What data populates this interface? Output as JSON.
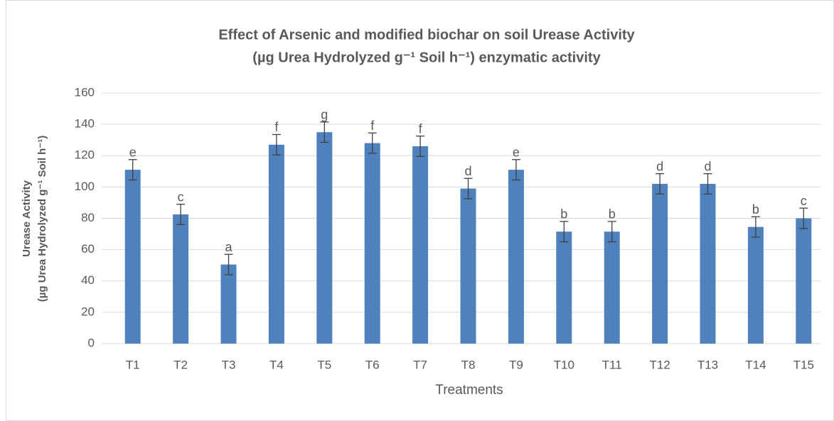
{
  "chart_data": {
    "type": "bar",
    "title": [
      "Effect of Arsenic and modified biochar on soil Urease Activity",
      "(µg Urea Hydrolyzed g⁻¹ Soil h⁻¹) enzymatic activity"
    ],
    "x_label": "Treatments",
    "y_label": [
      "Urease Activity",
      "(µg Urea Hydrolyzed g⁻¹ Soil h⁻¹)"
    ],
    "categories": [
      "T1",
      "T2",
      "T3",
      "T4",
      "T5",
      "T6",
      "T7",
      "T8",
      "T9",
      "T10",
      "T11",
      "T12",
      "T13",
      "T14",
      "T15"
    ],
    "values": [
      111,
      82.5,
      50.5,
      127,
      135,
      128,
      126,
      99,
      111,
      71.5,
      71.5,
      102,
      102,
      74.5,
      80
    ],
    "errors": [
      6.5,
      6.5,
      6.5,
      6.5,
      6.5,
      6.5,
      6.5,
      6.5,
      6.5,
      6.5,
      6.5,
      6.5,
      6.5,
      6.5,
      6.5
    ],
    "annotations": [
      "e",
      "c",
      "a",
      "f",
      "g",
      "f",
      "f",
      "d",
      "e",
      "b",
      "b",
      "d",
      "d",
      "b",
      "c"
    ],
    "color": "#4f81bd",
    "ylim": [
      0,
      160
    ],
    "yticks": [
      0,
      20,
      40,
      60,
      80,
      100,
      120,
      140,
      160
    ],
    "grid": true
  }
}
